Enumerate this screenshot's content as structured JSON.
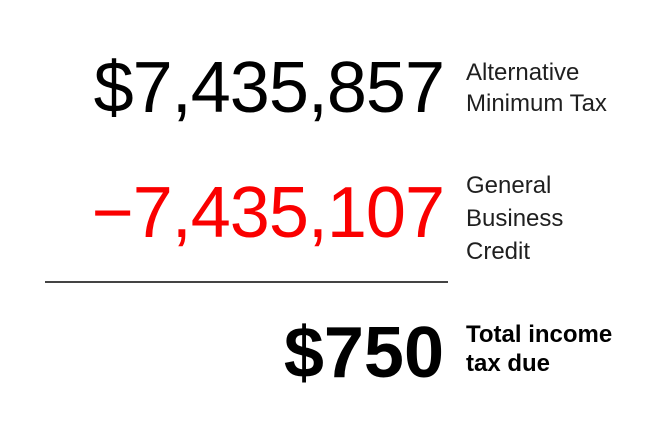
{
  "colors": {
    "background": "#ffffff",
    "amount_black": "#000000",
    "credit_red": "#fa0000",
    "label_dark": "#1f1f1f",
    "rule_gray": "#444444"
  },
  "rows": [
    {
      "value": "$7,435,857",
      "label": "Alternative Minimum Tax",
      "label_lines": [
        "Alternative",
        "Minimum Tax"
      ]
    },
    {
      "value": "−7,435,107",
      "label": "General Business Credit",
      "label_lines": [
        "General",
        "Business",
        "Credit"
      ]
    },
    {
      "value": "$750",
      "label": "Total income tax due",
      "label_lines": [
        "Total income",
        "tax due"
      ]
    }
  ],
  "chart_data": {
    "type": "table",
    "title": "",
    "rows": [
      {
        "label": "Alternative Minimum Tax",
        "display": "$7,435,857",
        "value": 7435857
      },
      {
        "label": "General Business Credit",
        "display": "−7,435,107",
        "value": -7435107
      },
      {
        "label": "Total income tax due",
        "display": "$750",
        "value": 750
      }
    ],
    "layout": {
      "values_alignment": "right",
      "labels_position": "right",
      "rule_between": "row2-row3"
    }
  }
}
